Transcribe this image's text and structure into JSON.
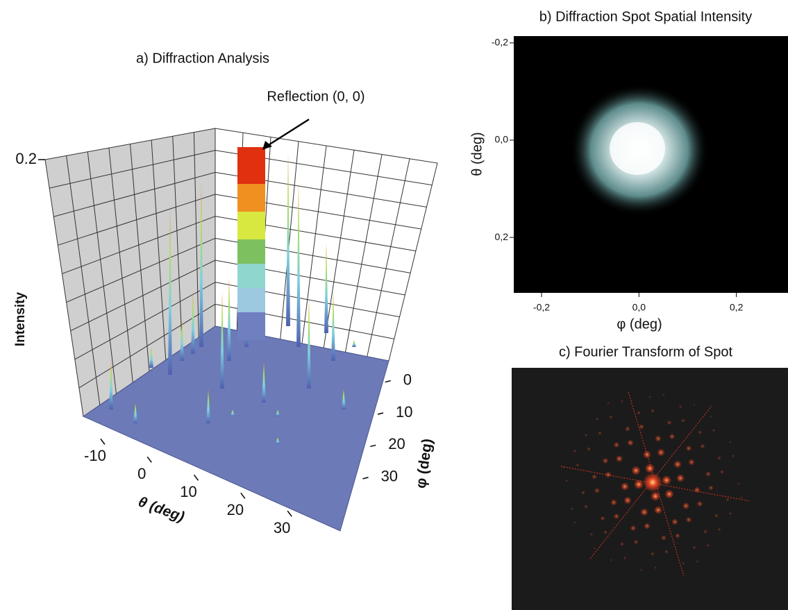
{
  "chart_data": [
    {
      "type": "surface3d",
      "title": "a) Diffraction Analysis",
      "annotation": "Reflection (0, 0)",
      "zlabel": "Intensity",
      "zlim": [
        0,
        0.2
      ],
      "zticks": [
        0.2
      ],
      "xlabel": "θ (deg)",
      "xlim": [
        -14,
        38
      ],
      "xticks": [
        -10,
        0,
        10,
        20,
        30
      ],
      "ylabel": "φ (deg)",
      "ylim": [
        -4,
        38
      ],
      "yticks": [
        0,
        10,
        20,
        30
      ],
      "grid": true
    },
    {
      "type": "heatmap",
      "title": "b) Diffraction Spot Spatial Intensity",
      "xlabel": "φ (deg)",
      "xlim": [
        -0.257,
        0.306
      ],
      "xticks": [
        {
          "value": -0.2,
          "label": "-0,2"
        },
        {
          "value": 0.0,
          "label": "0,0"
        },
        {
          "value": 0.2,
          "label": "0,2"
        }
      ],
      "ylabel": "θ (deg)",
      "ylim": [
        -0.214,
        0.314
      ],
      "y_inverted": true,
      "yticks": [
        {
          "value": -0.2,
          "label": "-0,2"
        },
        {
          "value": 0.0,
          "label": "0,0"
        },
        {
          "value": 0.2,
          "label": "0,2"
        }
      ]
    },
    {
      "type": "image",
      "title": "c) Fourier Transform of Spot"
    }
  ]
}
